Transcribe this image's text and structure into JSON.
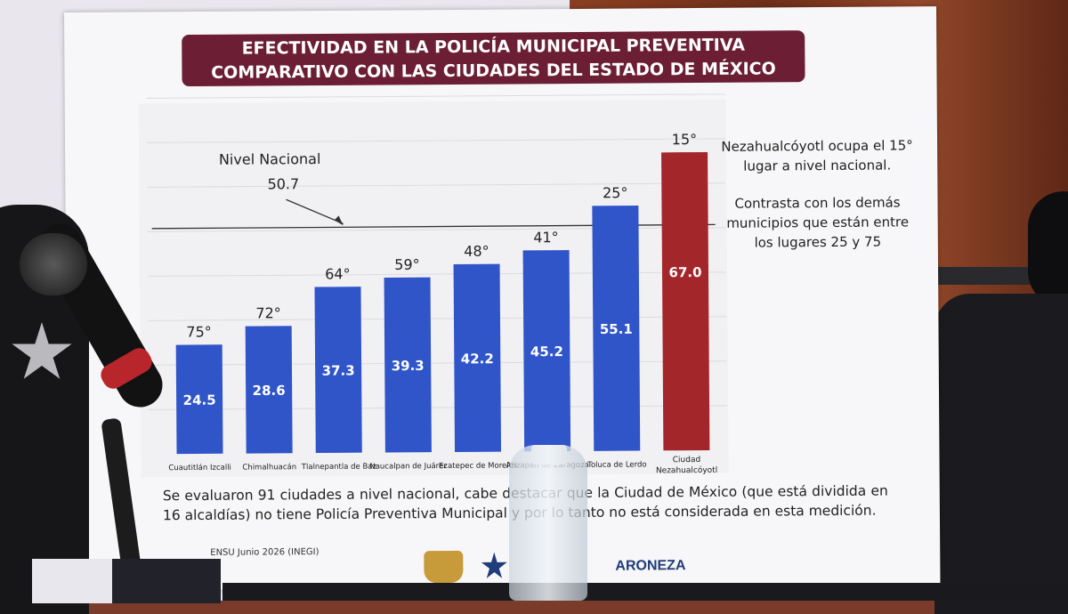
{
  "title_lines": [
    "EFECTIVIDAD EN LA POLICÍA MUNICIPAL PREVENTIVA",
    "COMPARATIVO CON LAS CIUDADES DEL ESTADO DE MÉXICO"
  ],
  "side_text": {
    "p1": "Nezahualcóyotl ocupa el 15° lugar a nivel nacional.",
    "p2": "Contrasta con los demás municipios que están entre los lugares 25 y 75"
  },
  "footnote": "Se evaluaron 91 ciudades a nivel nacional, cabe destacar que la Ciudad de México (que está dividida en 16 alcaldías) no tiene Policía Preventiva Municipal y por lo tanto no está considerada en esta medición.",
  "source": "ENSU Junio 2026 (INEGI)",
  "logo_text": "ARONEZA",
  "colors": {
    "bar_blue": "#2f55c9",
    "bar_red": "#a3262b",
    "title_bg": "#6b1e34"
  },
  "chart_data": {
    "type": "bar",
    "title": "",
    "xlabel": "",
    "ylabel": "",
    "ylim": [
      0,
      80
    ],
    "categories": [
      "Cuautitlán Izcalli",
      "Chimalhuacán",
      "Tlalnepantla de Baz",
      "Naucalpan de Juárez",
      "Ecatepec de Morelos",
      "Atizapán de Zaragoza",
      "Toluca de Lerdo",
      "Ciudad Nezahualcóyotl"
    ],
    "values": [
      24.5,
      28.6,
      37.3,
      39.3,
      42.2,
      45.2,
      55.1,
      67.0
    ],
    "value_labels": [
      "24.5",
      "28.6",
      "37.3",
      "39.3",
      "42.2",
      "45.2",
      "55.1",
      "67.0"
    ],
    "rank_labels": [
      "75°",
      "72°",
      "64°",
      "59°",
      "48°",
      "41°",
      "25°",
      "15°"
    ],
    "highlight_index": 7,
    "reference_line": {
      "label": "Nivel Nacional",
      "value_label": "50.7",
      "value": 50.7
    },
    "grid": true
  }
}
